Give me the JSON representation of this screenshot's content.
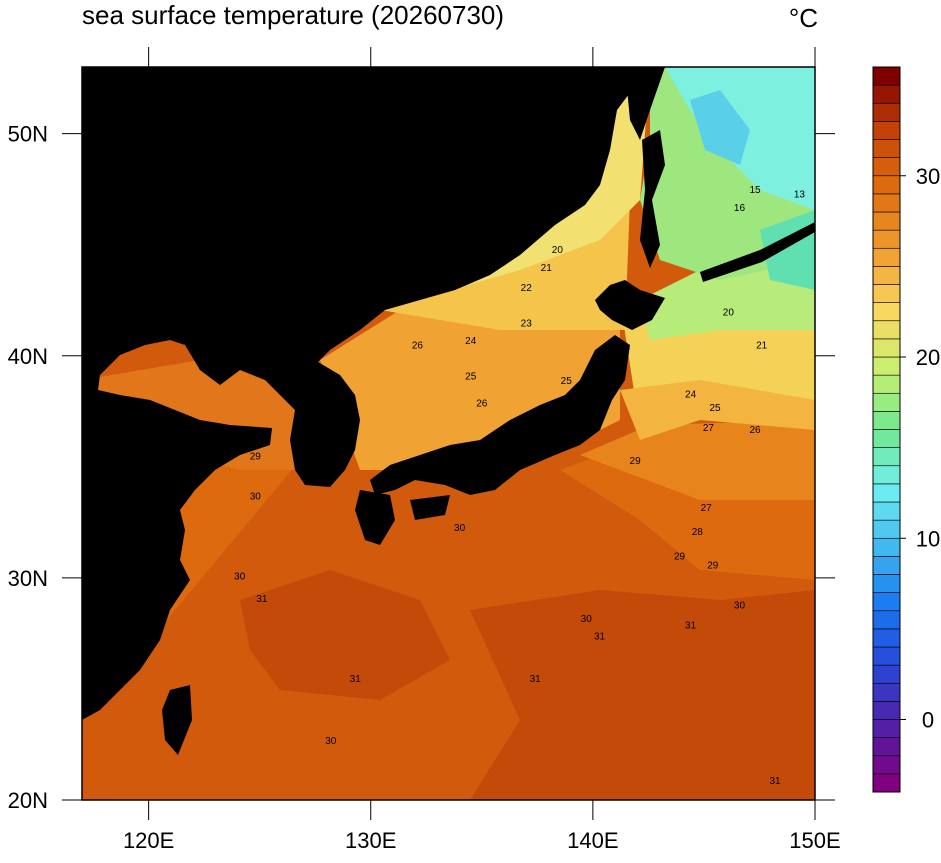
{
  "title": "sea surface temperature (20260730)",
  "unit": "°C",
  "map": {
    "xlim": [
      117,
      150
    ],
    "ylim": [
      20,
      53
    ],
    "xticks": [
      {
        "value": 120,
        "label": "120E"
      },
      {
        "value": 130,
        "label": "130E"
      },
      {
        "value": 140,
        "label": "140E"
      },
      {
        "value": 150,
        "label": "150E"
      }
    ],
    "yticks": [
      {
        "value": 20,
        "label": "20N"
      },
      {
        "value": 30,
        "label": "30N"
      },
      {
        "value": 40,
        "label": "40N"
      },
      {
        "value": 50,
        "label": "50N"
      }
    ],
    "contour_labels": [
      {
        "lon": 138.4,
        "lat": 44.8,
        "value": 20
      },
      {
        "lon": 137.9,
        "lat": 44.0,
        "value": 21
      },
      {
        "lon": 137.0,
        "lat": 43.1,
        "value": 22
      },
      {
        "lon": 137.0,
        "lat": 41.5,
        "value": 23
      },
      {
        "lon": 132.1,
        "lat": 40.5,
        "value": 26
      },
      {
        "lon": 134.5,
        "lat": 40.7,
        "value": 24
      },
      {
        "lon": 134.5,
        "lat": 39.1,
        "value": 25
      },
      {
        "lon": 135.0,
        "lat": 37.9,
        "value": 26
      },
      {
        "lon": 138.8,
        "lat": 38.9,
        "value": 25
      },
      {
        "lon": 124.8,
        "lat": 35.5,
        "value": 29
      },
      {
        "lon": 124.8,
        "lat": 33.7,
        "value": 30
      },
      {
        "lon": 134.0,
        "lat": 32.3,
        "value": 30
      },
      {
        "lon": 125.1,
        "lat": 29.1,
        "value": 31
      },
      {
        "lon": 124.1,
        "lat": 30.1,
        "value": 30
      },
      {
        "lon": 129.3,
        "lat": 25.5,
        "value": 31
      },
      {
        "lon": 139.7,
        "lat": 28.2,
        "value": 30
      },
      {
        "lon": 140.3,
        "lat": 27.4,
        "value": 31
      },
      {
        "lon": 144.4,
        "lat": 27.9,
        "value": 31
      },
      {
        "lon": 143.9,
        "lat": 31.0,
        "value": 29
      },
      {
        "lon": 144.7,
        "lat": 32.1,
        "value": 28
      },
      {
        "lon": 145.1,
        "lat": 33.2,
        "value": 27
      },
      {
        "lon": 145.2,
        "lat": 36.8,
        "value": 27
      },
      {
        "lon": 147.3,
        "lat": 36.7,
        "value": 26
      },
      {
        "lon": 145.5,
        "lat": 37.7,
        "value": 25
      },
      {
        "lon": 144.4,
        "lat": 38.3,
        "value": 24
      },
      {
        "lon": 146.1,
        "lat": 42.0,
        "value": 20
      },
      {
        "lon": 147.6,
        "lat": 40.5,
        "value": 21
      },
      {
        "lon": 146.6,
        "lat": 46.7,
        "value": 16
      },
      {
        "lon": 147.3,
        "lat": 47.5,
        "value": 15
      },
      {
        "lon": 149.3,
        "lat": 47.3,
        "value": 13
      },
      {
        "lon": 137.4,
        "lat": 25.5,
        "value": 31
      },
      {
        "lon": 148.2,
        "lat": 20.9,
        "value": 31
      },
      {
        "lon": 128.2,
        "lat": 22.7,
        "value": 30
      },
      {
        "lon": 141.9,
        "lat": 35.3,
        "value": 29
      },
      {
        "lon": 145.4,
        "lat": 30.6,
        "value": 29
      },
      {
        "lon": 146.6,
        "lat": 28.8,
        "value": 30
      }
    ]
  },
  "colorbar": {
    "lim": [
      -4,
      36
    ],
    "step": 1,
    "ticks": [
      0,
      10,
      20,
      30
    ],
    "colors": [
      "#800080",
      "#5020a8",
      "#2848d8",
      "#1878f0",
      "#40b8f0",
      "#70f0f0",
      "#70e890",
      "#c8f070",
      "#f8d860",
      "#f0a030",
      "#e07010",
      "#c84808",
      "#800000"
    ]
  }
}
